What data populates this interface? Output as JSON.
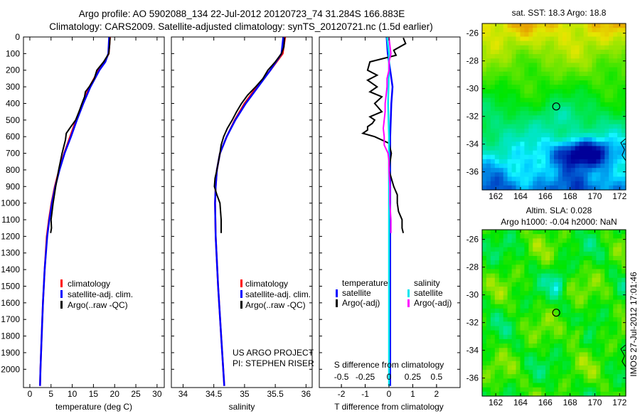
{
  "title_line1": "Argo profile: AO 5902088_134 22-Jul-2012 20120723_74 31.284S 166.883E",
  "title_line2": "Climatology: CARS2009. Satellite-adjusted climatology: synTS_20120721.nc (1.5d earlier)",
  "colors": {
    "climatology": "#ff0000",
    "satellite": "#0000ff",
    "argo": "#000000",
    "sal_satellite": "#00e5ee",
    "sal_argo": "#ff00ff"
  },
  "chart_data": [
    {
      "type": "line",
      "name": "temperature-profile",
      "xlabel": "temperature (deg C)",
      "ylabel": "depth",
      "xlim": [
        -1.5,
        31.7
      ],
      "ylim": [
        0,
        2110
      ],
      "xticks": [
        0,
        5,
        10,
        15,
        20,
        25,
        30
      ],
      "xtick_labels": [
        "0",
        "5",
        "10",
        "15",
        "20",
        "25",
        "30"
      ],
      "yticks": [
        0,
        100,
        200,
        300,
        400,
        500,
        600,
        700,
        800,
        900,
        1000,
        1100,
        1200,
        1300,
        1400,
        1500,
        1600,
        1700,
        1800,
        1900,
        2000
      ],
      "ytick_labels": [
        "0",
        "100",
        "200",
        "300",
        "400",
        "500",
        "600",
        "700",
        "800",
        "900",
        "1000",
        "1100",
        "1200",
        "1300",
        "1400",
        "1500",
        "1600",
        "1700",
        "1800",
        "1900",
        "2000"
      ],
      "legend": [
        "climatology",
        "satellite-adj. clim.",
        "Argo(..raw -QC)"
      ],
      "series": [
        {
          "name": "climatology",
          "depth": [
            0,
            100,
            150,
            200,
            300,
            400,
            500,
            600,
            700,
            800,
            900,
            1000,
            1100,
            1200,
            1400,
            1600,
            1800,
            2000,
            2100
          ],
          "values": [
            18.9,
            18.6,
            17.6,
            16.2,
            14.1,
            12.4,
            10.9,
            9.5,
            8.1,
            6.9,
            5.9,
            5.1,
            4.5,
            4.0,
            3.5,
            3.1,
            2.8,
            2.5,
            2.4
          ]
        },
        {
          "name": "satellite-adj. clim.",
          "depth": [
            0,
            100,
            150,
            200,
            300,
            400,
            500,
            600,
            700,
            800,
            900,
            1000,
            1100,
            1200,
            1400,
            1600,
            1800,
            2000,
            2100
          ],
          "values": [
            18.7,
            18.5,
            17.8,
            16.4,
            14.3,
            12.6,
            11.1,
            9.7,
            8.2,
            7.0,
            6.0,
            5.2,
            4.6,
            4.1,
            3.5,
            3.1,
            2.8,
            2.5,
            2.4
          ]
        },
        {
          "name": "Argo(..raw -QC)",
          "depth": [
            5,
            50,
            100,
            150,
            200,
            250,
            300,
            330,
            360,
            400,
            450,
            500,
            550,
            580,
            620,
            700,
            800,
            900,
            1000,
            1100,
            1150,
            1180
          ],
          "values": [
            18.9,
            18.8,
            18.6,
            17.4,
            15.8,
            15.2,
            14.0,
            13.1,
            12.9,
            12.3,
            11.6,
            10.8,
            9.4,
            8.6,
            8.4,
            7.6,
            6.8,
            6.1,
            5.5,
            5.0,
            5.1,
            4.9
          ]
        }
      ]
    },
    {
      "type": "line",
      "name": "salinity-profile",
      "xlabel": "salinity",
      "xlim": [
        33.81,
        36.1
      ],
      "ylim": [
        0,
        2110
      ],
      "xticks": [
        34,
        34.5,
        35,
        35.5,
        36
      ],
      "xtick_labels": [
        "34",
        "34.5",
        "35",
        "35.5",
        "36"
      ],
      "legend": [
        "climatology",
        "satellite-adj. clim.",
        "Argo(..raw -QC)"
      ],
      "annotation": [
        "US ARGO PROJECT",
        "PI: STEPHEN RISER"
      ],
      "series": [
        {
          "name": "climatology",
          "depth": [
            0,
            100,
            200,
            300,
            400,
            500,
            600,
            700,
            800,
            900,
            1000,
            1200,
            1500,
            1800,
            2100
          ],
          "values": [
            35.66,
            35.62,
            35.42,
            35.2,
            35.0,
            34.84,
            34.71,
            34.6,
            34.55,
            34.53,
            34.52,
            34.53,
            34.57,
            34.62,
            34.67
          ]
        },
        {
          "name": "satellite-adj. clim.",
          "depth": [
            0,
            100,
            200,
            300,
            400,
            500,
            600,
            700,
            800,
            900,
            1000,
            1200,
            1500,
            1800,
            2100
          ],
          "values": [
            35.63,
            35.6,
            35.42,
            35.22,
            35.02,
            34.85,
            34.71,
            34.6,
            34.55,
            34.53,
            34.52,
            34.53,
            34.57,
            34.62,
            34.67
          ]
        },
        {
          "name": "Argo(..raw -QC)",
          "depth": [
            5,
            60,
            100,
            150,
            200,
            250,
            300,
            350,
            400,
            450,
            500,
            550,
            600,
            650,
            700,
            800,
            850,
            900,
            950,
            1000,
            1100,
            1180
          ],
          "values": [
            35.65,
            35.64,
            35.6,
            35.5,
            35.38,
            35.3,
            35.18,
            35.05,
            34.95,
            34.87,
            34.8,
            34.72,
            34.66,
            34.62,
            34.6,
            34.55,
            34.52,
            34.51,
            34.55,
            34.6,
            34.62,
            34.62
          ]
        }
      ]
    },
    {
      "type": "line",
      "name": "difference-profile",
      "xlabel": "T difference from climatology",
      "x2label": "S difference from climatology",
      "xlim": [
        -2.93,
        2.99
      ],
      "ylim": [
        0,
        2110
      ],
      "xticks": [
        -2,
        -1,
        0,
        1,
        2
      ],
      "xtick_labels": [
        "-2",
        "-1",
        "0",
        "1",
        "2"
      ],
      "x2ticks": [
        -0.5,
        -0.25,
        0,
        0.25,
        0.5
      ],
      "x2tick_labels": [
        "-0.5",
        "-0.25",
        "0",
        "0.25",
        "0.5"
      ],
      "legend_temperature": {
        "title": "temperature",
        "items": [
          "satellite",
          "Argo(-adj)"
        ]
      },
      "legend_salinity": {
        "title": "salinity",
        "items": [
          "satellite",
          "Argo(-adj)"
        ]
      },
      "series": [
        {
          "name": "T satellite",
          "axis": "T",
          "depth": [
            0,
            100,
            200,
            300,
            400,
            600,
            800,
            1000,
            1500,
            2100
          ],
          "values": [
            -0.1,
            -0.05,
            0.05,
            0.15,
            0.1,
            0.05,
            0.05,
            0.05,
            0.05,
            0.05
          ]
        },
        {
          "name": "T Argo(-adj)",
          "axis": "T",
          "depth": [
            5,
            40,
            80,
            110,
            150,
            200,
            230,
            260,
            300,
            330,
            360,
            400,
            450,
            480,
            500,
            520,
            540,
            560,
            580,
            600,
            640,
            700,
            800,
            850,
            900,
            950,
            1000,
            1050,
            1100,
            1150,
            1180
          ],
          "values": [
            0.6,
            0.7,
            0.2,
            0.3,
            -0.8,
            -0.9,
            -0.5,
            -0.9,
            -0.5,
            -0.8,
            -0.3,
            -0.6,
            -0.3,
            -0.8,
            -0.6,
            -0.7,
            -0.9,
            -0.9,
            -1.1,
            -0.6,
            0.0,
            0.1,
            0.0,
            0.1,
            0.2,
            0.35,
            0.35,
            0.4,
            0.55,
            0.55,
            0.6
          ]
        },
        {
          "name": "S satellite",
          "axis": "S",
          "depth": [
            0,
            100,
            200,
            400,
            600,
            800,
            1000,
            1500,
            2100
          ],
          "values": [
            -0.02,
            0.0,
            0.0,
            -0.01,
            0.0,
            0.0,
            0.0,
            0.0,
            0.0
          ]
        },
        {
          "name": "S Argo(-adj)",
          "axis": "S",
          "depth": [
            5,
            50,
            100,
            150,
            200,
            250,
            300,
            350,
            400,
            450,
            500,
            550,
            600,
            650,
            700,
            750,
            800,
            900,
            1000,
            1100,
            1180
          ],
          "values": [
            0.0,
            0.01,
            0.02,
            0.0,
            0.0,
            -0.02,
            -0.02,
            -0.03,
            -0.04,
            -0.04,
            -0.05,
            -0.06,
            -0.05,
            -0.05,
            -0.01,
            0.0,
            0.0,
            0.01,
            0.01,
            0.02,
            0.02
          ]
        }
      ]
    },
    {
      "type": "heatmap",
      "name": "sst-map",
      "title": "sat. SST: 18.3 Argo: 18.8",
      "xlim": [
        160.9,
        172.5
      ],
      "ylim": [
        -37.3,
        -25.3
      ],
      "xticks": [
        162,
        164,
        166,
        168,
        170,
        172
      ],
      "xtick_labels": [
        "162",
        "164",
        "166",
        "168",
        "170",
        "172"
      ],
      "yticks": [
        -26,
        -28,
        -30,
        -32,
        -34,
        -36
      ],
      "ytick_labels": [
        "-26",
        "-28",
        "-30",
        "-32",
        "-34",
        "-36"
      ],
      "marker": {
        "lon": 166.883,
        "lat": -31.284
      }
    },
    {
      "type": "heatmap",
      "name": "sla-map",
      "title_line1": "Altim. SLA: 0.028",
      "title_line2": "Argo h1000: -0.04 h2000: NaN",
      "xlim": [
        160.9,
        172.5
      ],
      "ylim": [
        -37.3,
        -25.3
      ],
      "xticks": [
        162,
        164,
        166,
        168,
        170,
        172
      ],
      "xtick_labels": [
        "162",
        "164",
        "166",
        "168",
        "170",
        "172"
      ],
      "yticks": [
        -26,
        -28,
        -30,
        -32,
        -34,
        -36
      ],
      "ytick_labels": [
        "-26",
        "-28",
        "-30",
        "-32",
        "-34",
        "-36"
      ],
      "marker": {
        "lon": 166.883,
        "lat": -31.284
      }
    }
  ],
  "footer_stamp": "IMOS 27-Jul-2012 17:01:46"
}
